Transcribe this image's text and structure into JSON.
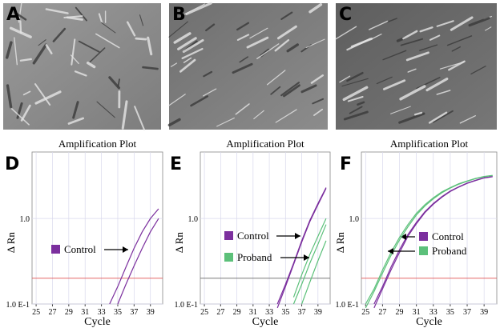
{
  "panel_labels": [
    "A",
    "B",
    "C",
    "D",
    "E",
    "F"
  ],
  "chart_data": [
    {
      "type": "line",
      "title": "Amplification Plot",
      "x_label": "Cycle",
      "y_label": "Δ Rn",
      "log_y": true,
      "x": [
        25,
        26,
        27,
        28,
        29,
        30,
        31,
        32,
        33,
        34,
        35,
        36,
        37,
        38,
        39,
        40
      ],
      "xlim": [
        24.5,
        40.5
      ],
      "xticks": [
        25,
        27,
        29,
        31,
        33,
        35,
        37,
        39
      ],
      "ylim": [
        0.1,
        6
      ],
      "yticks": [
        {
          "value": 0.1,
          "label": "1.0 E-1"
        },
        {
          "value": 1,
          "label": "1.0"
        }
      ],
      "threshold": 0.2,
      "threshold_color": "#e05050",
      "series": [
        {
          "name": "Control",
          "color": "#7b2f9e",
          "values": [
            [
              null,
              null,
              null,
              null,
              null,
              null,
              null,
              null,
              null,
              0.1,
              0.16,
              0.27,
              0.45,
              0.7,
              1.0,
              1.3
            ],
            [
              null,
              null,
              null,
              null,
              null,
              null,
              null,
              null,
              null,
              null,
              0.1,
              0.17,
              0.28,
              0.45,
              0.7,
              1.0
            ]
          ]
        }
      ]
    },
    {
      "type": "line",
      "title": "Amplification Plot",
      "x_label": "Cycle",
      "y_label": "Δ Rn",
      "log_y": true,
      "x": [
        25,
        26,
        27,
        28,
        29,
        30,
        31,
        32,
        33,
        34,
        35,
        36,
        37,
        38,
        39,
        40
      ],
      "xlim": [
        24.5,
        40.5
      ],
      "xticks": [
        25,
        27,
        29,
        31,
        33,
        35,
        37,
        39
      ],
      "ylim": [
        0.1,
        6
      ],
      "yticks": [
        {
          "value": 0.1,
          "label": "1.0 E-1"
        },
        {
          "value": 1,
          "label": "1.0"
        }
      ],
      "threshold": 0.2,
      "threshold_color": "#666666",
      "series": [
        {
          "name": "Control",
          "color": "#7b2f9e",
          "values": [
            [
              null,
              null,
              null,
              null,
              null,
              null,
              null,
              null,
              null,
              0.1,
              0.17,
              0.3,
              0.55,
              0.95,
              1.5,
              2.3
            ],
            [
              null,
              null,
              null,
              null,
              null,
              null,
              null,
              null,
              null,
              0.09,
              0.16,
              0.29,
              0.53,
              0.92,
              1.45,
              2.25
            ]
          ]
        },
        {
          "name": "Proband",
          "color": "#5cc07a",
          "values": [
            [
              null,
              null,
              null,
              null,
              null,
              null,
              null,
              null,
              null,
              null,
              null,
              0.1,
              0.17,
              0.3,
              0.5,
              0.85
            ],
            [
              null,
              null,
              null,
              null,
              null,
              null,
              null,
              null,
              null,
              null,
              null,
              null,
              0.1,
              0.18,
              0.32,
              0.55
            ],
            [
              null,
              null,
              null,
              null,
              null,
              null,
              null,
              null,
              null,
              null,
              null,
              0.12,
              0.22,
              0.38,
              0.62,
              1.0
            ]
          ]
        }
      ]
    },
    {
      "type": "line",
      "title": "Amplification Plot",
      "x_label": "Cycle",
      "y_label": "Δ Rn",
      "log_y": true,
      "x": [
        25,
        26,
        27,
        28,
        29,
        30,
        31,
        32,
        33,
        34,
        35,
        36,
        37,
        38,
        39,
        40
      ],
      "xlim": [
        24.5,
        40.5
      ],
      "xticks": [
        25,
        27,
        29,
        31,
        33,
        35,
        37,
        39
      ],
      "ylim": [
        0.1,
        6
      ],
      "yticks": [
        {
          "value": 0.1,
          "label": "1.0 E-1"
        },
        {
          "value": 1,
          "label": "1.0"
        }
      ],
      "threshold": 0.2,
      "threshold_color": "#e05050",
      "series": [
        {
          "name": "Control",
          "color": "#7b2f9e",
          "values": [
            [
              null,
              0.1,
              0.16,
              0.27,
              0.43,
              0.65,
              0.9,
              1.2,
              1.5,
              1.8,
              2.1,
              2.35,
              2.6,
              2.8,
              3.0,
              3.1
            ],
            [
              null,
              0.09,
              0.15,
              0.25,
              0.4,
              0.62,
              0.87,
              1.17,
              1.47,
              1.77,
              2.07,
              2.33,
              2.58,
              2.78,
              2.98,
              3.08
            ]
          ]
        },
        {
          "name": "Proband",
          "color": "#5cc07a",
          "values": [
            [
              0.1,
              0.15,
              0.25,
              0.4,
              0.6,
              0.85,
              1.15,
              1.45,
              1.75,
              2.05,
              2.3,
              2.55,
              2.75,
              2.95,
              3.1,
              3.2
            ],
            [
              0.09,
              0.14,
              0.23,
              0.37,
              0.56,
              0.8,
              1.1,
              1.4,
              1.7,
              2.0,
              2.27,
              2.52,
              2.73,
              2.93,
              3.08,
              3.18
            ]
          ]
        }
      ]
    }
  ]
}
